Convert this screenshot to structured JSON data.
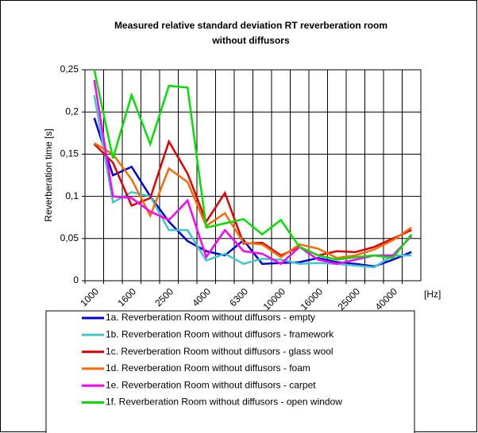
{
  "chart_data": {
    "type": "line",
    "title": [
      "Measured relative standard deviation RT reverberation room",
      "without diffusors"
    ],
    "y_label": "Reverberation time [s]",
    "x_unit": "[Hz]",
    "categories": [
      "1000",
      null,
      "1600",
      null,
      "2500",
      null,
      "4000",
      null,
      "6300",
      null,
      "10000",
      null,
      "16000",
      null,
      "25000",
      null,
      "40000",
      null
    ],
    "ylim": [
      0,
      0.25
    ],
    "yticks": [
      0,
      {
        "value": 0.05,
        "label": "0,05"
      },
      {
        "value": 0.1,
        "label": "0,1"
      },
      {
        "value": 0.15,
        "label": "0,15"
      },
      {
        "value": 0.2,
        "label": "0,2"
      },
      {
        "value": 0.25,
        "label": "0,25"
      }
    ],
    "grid": true,
    "series": [
      {
        "name": "1a. Reverberation Room without diffusors - empty",
        "color": "#0000dd",
        "values": [
          0.193,
          0.125,
          0.135,
          0.1,
          0.07,
          0.047,
          0.035,
          0.03,
          0.048,
          0.02,
          0.021,
          0.022,
          0.027,
          0.022,
          0.02,
          0.017,
          0.025,
          0.034
        ]
      },
      {
        "name": "1b. Reverberation Room without diffusors - framework",
        "color": "#40c8c8",
        "values": [
          0.22,
          0.093,
          0.105,
          0.1,
          0.06,
          0.06,
          0.024,
          0.032,
          0.02,
          0.026,
          0.025,
          0.02,
          0.021,
          0.02,
          0.018,
          0.016,
          0.03,
          0.03
        ]
      },
      {
        "name": "1c. Reverberation Room without diffusors - glass wool",
        "color": "#e00000",
        "values": [
          0.162,
          0.14,
          0.089,
          0.098,
          0.165,
          0.127,
          0.07,
          0.104,
          0.044,
          0.045,
          0.03,
          0.04,
          0.03,
          0.035,
          0.034,
          0.04,
          0.05,
          0.06
        ]
      },
      {
        "name": "1d. Reverberation Room without diffusors - foam",
        "color": "#ff6a00",
        "values": [
          0.163,
          0.15,
          0.12,
          0.077,
          0.133,
          0.117,
          0.065,
          0.08,
          0.045,
          0.043,
          0.028,
          0.043,
          0.038,
          0.027,
          0.03,
          0.037,
          0.048,
          0.063
        ]
      },
      {
        "name": "1e. Reverberation Room without diffusors - carpet",
        "color": "#ff00ff",
        "values": [
          0.238,
          0.1,
          0.098,
          0.082,
          0.072,
          0.095,
          0.028,
          0.06,
          0.035,
          0.032,
          0.02,
          0.04,
          0.025,
          0.02,
          0.025,
          0.03,
          0.03,
          0.053
        ]
      },
      {
        "name": "1f. Reverberation Room without diffusors - open window",
        "color": "#00e000",
        "values": [
          0.25,
          0.145,
          0.22,
          0.162,
          0.231,
          0.229,
          0.063,
          0.068,
          0.073,
          0.055,
          0.072,
          0.04,
          0.03,
          0.025,
          0.028,
          0.03,
          0.027,
          0.055
        ]
      }
    ]
  }
}
